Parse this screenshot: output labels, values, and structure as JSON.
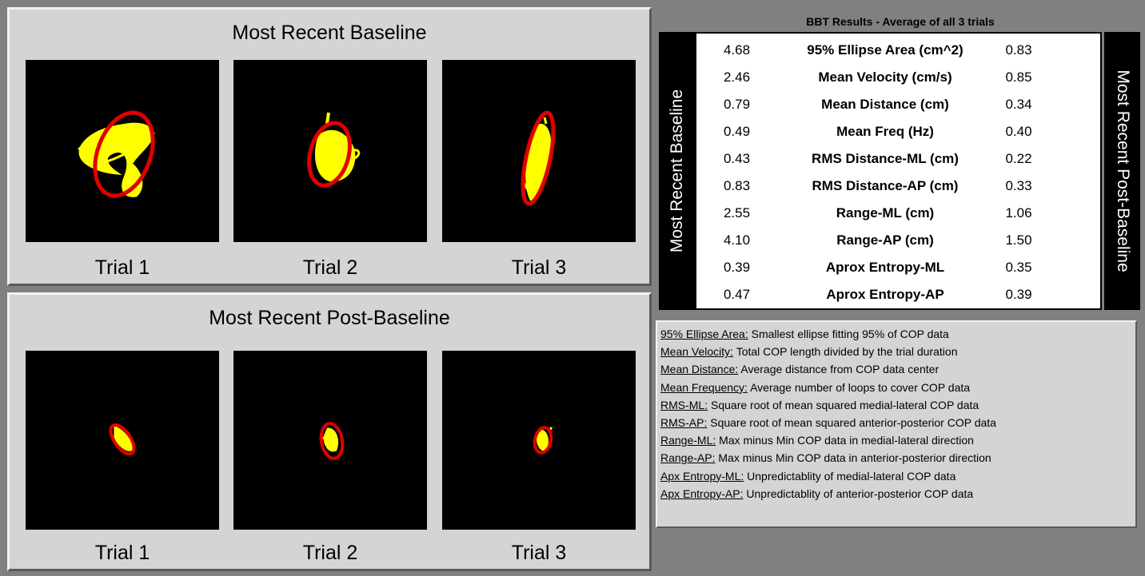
{
  "baseline_panel": {
    "title": "Most Recent Baseline",
    "trials": [
      {
        "label": "Trial 1"
      },
      {
        "label": "Trial 2"
      },
      {
        "label": "Trial 3"
      }
    ]
  },
  "post_panel": {
    "title": "Most Recent Post-Baseline",
    "trials": [
      {
        "label": "Trial 1"
      },
      {
        "label": "Trial 2"
      },
      {
        "label": "Trial 3"
      }
    ]
  },
  "colors": {
    "trace": "#ffff00",
    "ellipse": "#e00000",
    "plot_bg": "#000000"
  },
  "results": {
    "title": "BBT Results - Average of all 3 trials",
    "left_tab": "Most Recent Baseline",
    "right_tab": "Most Recent Post-Baseline",
    "rows": [
      {
        "baseline": "4.68",
        "metric": "95% Ellipse Area (cm^2)",
        "post": "0.83"
      },
      {
        "baseline": "2.46",
        "metric": "Mean Velocity (cm/s)",
        "post": "0.85"
      },
      {
        "baseline": "0.79",
        "metric": "Mean Distance (cm)",
        "post": "0.34"
      },
      {
        "baseline": "0.49",
        "metric": "Mean Freq (Hz)",
        "post": "0.40"
      },
      {
        "baseline": "0.43",
        "metric": "RMS Distance-ML (cm)",
        "post": "0.22"
      },
      {
        "baseline": "0.83",
        "metric": "RMS Distance-AP (cm)",
        "post": "0.33"
      },
      {
        "baseline": "2.55",
        "metric": "Range-ML (cm)",
        "post": "1.06"
      },
      {
        "baseline": "4.10",
        "metric": "Range-AP (cm)",
        "post": "1.50"
      },
      {
        "baseline": "0.39",
        "metric": "Aprox Entropy-ML",
        "post": "0.35"
      },
      {
        "baseline": "0.47",
        "metric": "Aprox Entropy-AP",
        "post": "0.39"
      }
    ]
  },
  "legend": [
    {
      "term": "95% Ellipse Area:",
      "desc": " Smallest ellipse fitting 95% of COP data"
    },
    {
      "term": "Mean Velocity:",
      "desc": " Total COP length divided by the trial duration"
    },
    {
      "term": "Mean Distance:",
      "desc": " Average distance from COP data center"
    },
    {
      "term": "Mean Frequency:",
      "desc": " Average number of loops to cover COP data"
    },
    {
      "term": "RMS-ML:",
      "desc": " Square root of mean squared medial-lateral COP data"
    },
    {
      "term": "RMS-AP:",
      "desc": " Square root of mean squared anterior-posterior COP data"
    },
    {
      "term": "Range-ML:",
      "desc": " Max minus Min COP data in medial-lateral direction"
    },
    {
      "term": "Range-AP:",
      "desc": " Max minus Min COP data in anterior-posterior direction"
    },
    {
      "term": "Apx Entropy-ML:",
      "desc": " Unpredictablity of medial-lateral COP data"
    },
    {
      "term": "Apx Entropy-AP:",
      "desc": " Unpredictablity of anterior-posterior COP data"
    }
  ]
}
